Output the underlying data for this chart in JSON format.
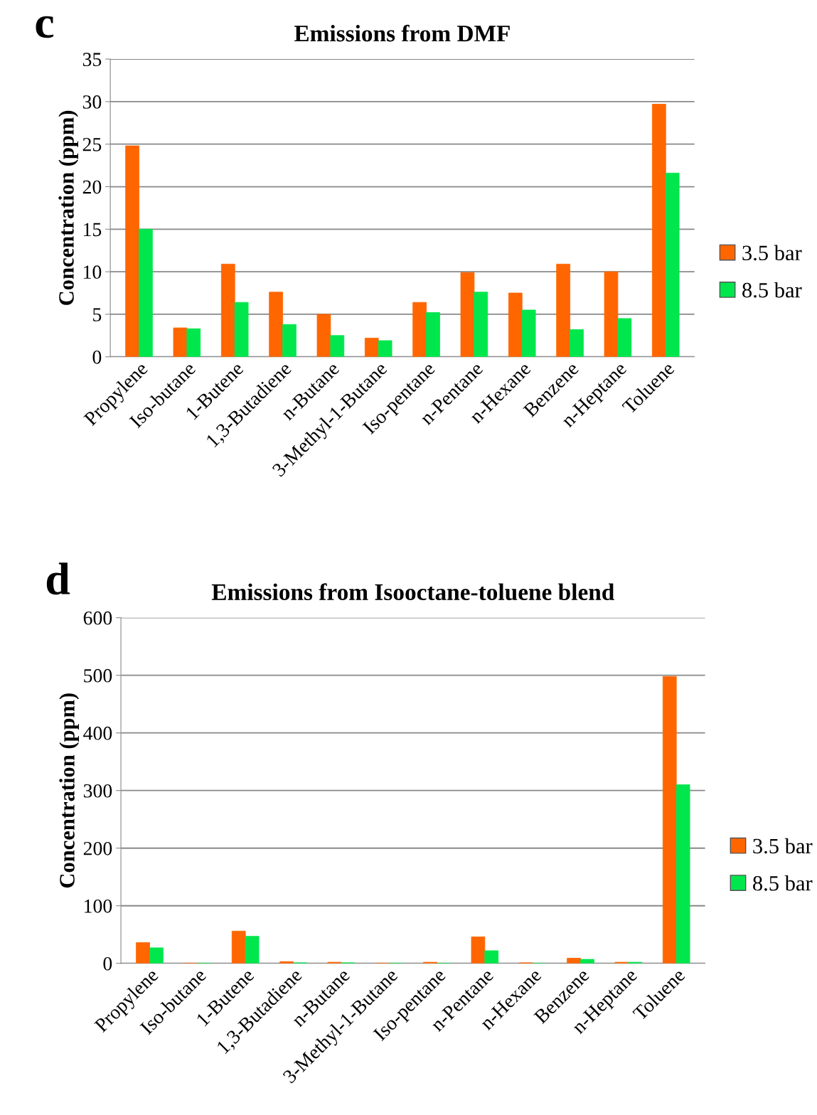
{
  "chart_data": [
    {
      "type": "bar",
      "title": "Emissions from DMF",
      "ylabel": "Concentration (ppm)",
      "annotations": [
        "c"
      ],
      "categories": [
        "Propylene",
        "Iso-butane",
        "1-Butene",
        "1,3-Butadiene",
        "n-Butane",
        "3-Methyl-1-Butane",
        "Iso-pentane",
        "n-Pentane",
        "n-Hexane",
        "Benzene",
        "n-Heptane",
        "Toluene"
      ],
      "series": [
        {
          "name": "3.5 bar",
          "color": "#ff6600",
          "values": [
            24.8,
            3.4,
            10.9,
            7.6,
            5.0,
            2.2,
            6.4,
            9.9,
            7.5,
            10.9,
            10.0,
            29.7
          ]
        },
        {
          "name": "8.5 bar",
          "color": "#00e64d",
          "values": [
            15.0,
            3.3,
            6.4,
            3.8,
            2.5,
            1.9,
            5.2,
            7.6,
            5.5,
            3.2,
            4.5,
            21.6
          ]
        }
      ],
      "ylim": [
        0,
        35
      ],
      "yticks": [
        0,
        5,
        10,
        15,
        20,
        25,
        30,
        35
      ],
      "grid": "y",
      "legend": "right"
    },
    {
      "type": "bar",
      "title": "Emissions from Isooctane-toluene blend",
      "ylabel": "Concentration (ppm)",
      "annotations": [
        "d"
      ],
      "categories": [
        "Propylene",
        "Iso-butane",
        "1-Butene",
        "1,3-Butadiene",
        "n-Butane",
        "3-Methyl-1-Butane",
        "Iso-pentane",
        "n-Pentane",
        "n-Hexane",
        "Benzene",
        "n-Heptane",
        "Toluene"
      ],
      "series": [
        {
          "name": "3.5 bar",
          "color": "#ff6600",
          "values": [
            36,
            0,
            56,
            3,
            2,
            0,
            2,
            46,
            1,
            9,
            2,
            498
          ]
        },
        {
          "name": "8.5 bar",
          "color": "#00e64d",
          "values": [
            27,
            0,
            47,
            1,
            1,
            0,
            0,
            22,
            0,
            7,
            2,
            310
          ]
        }
      ],
      "ylim": [
        0,
        600
      ],
      "yticks": [
        0,
        100,
        200,
        300,
        400,
        500,
        600
      ],
      "grid": "y",
      "legend": "right"
    }
  ]
}
